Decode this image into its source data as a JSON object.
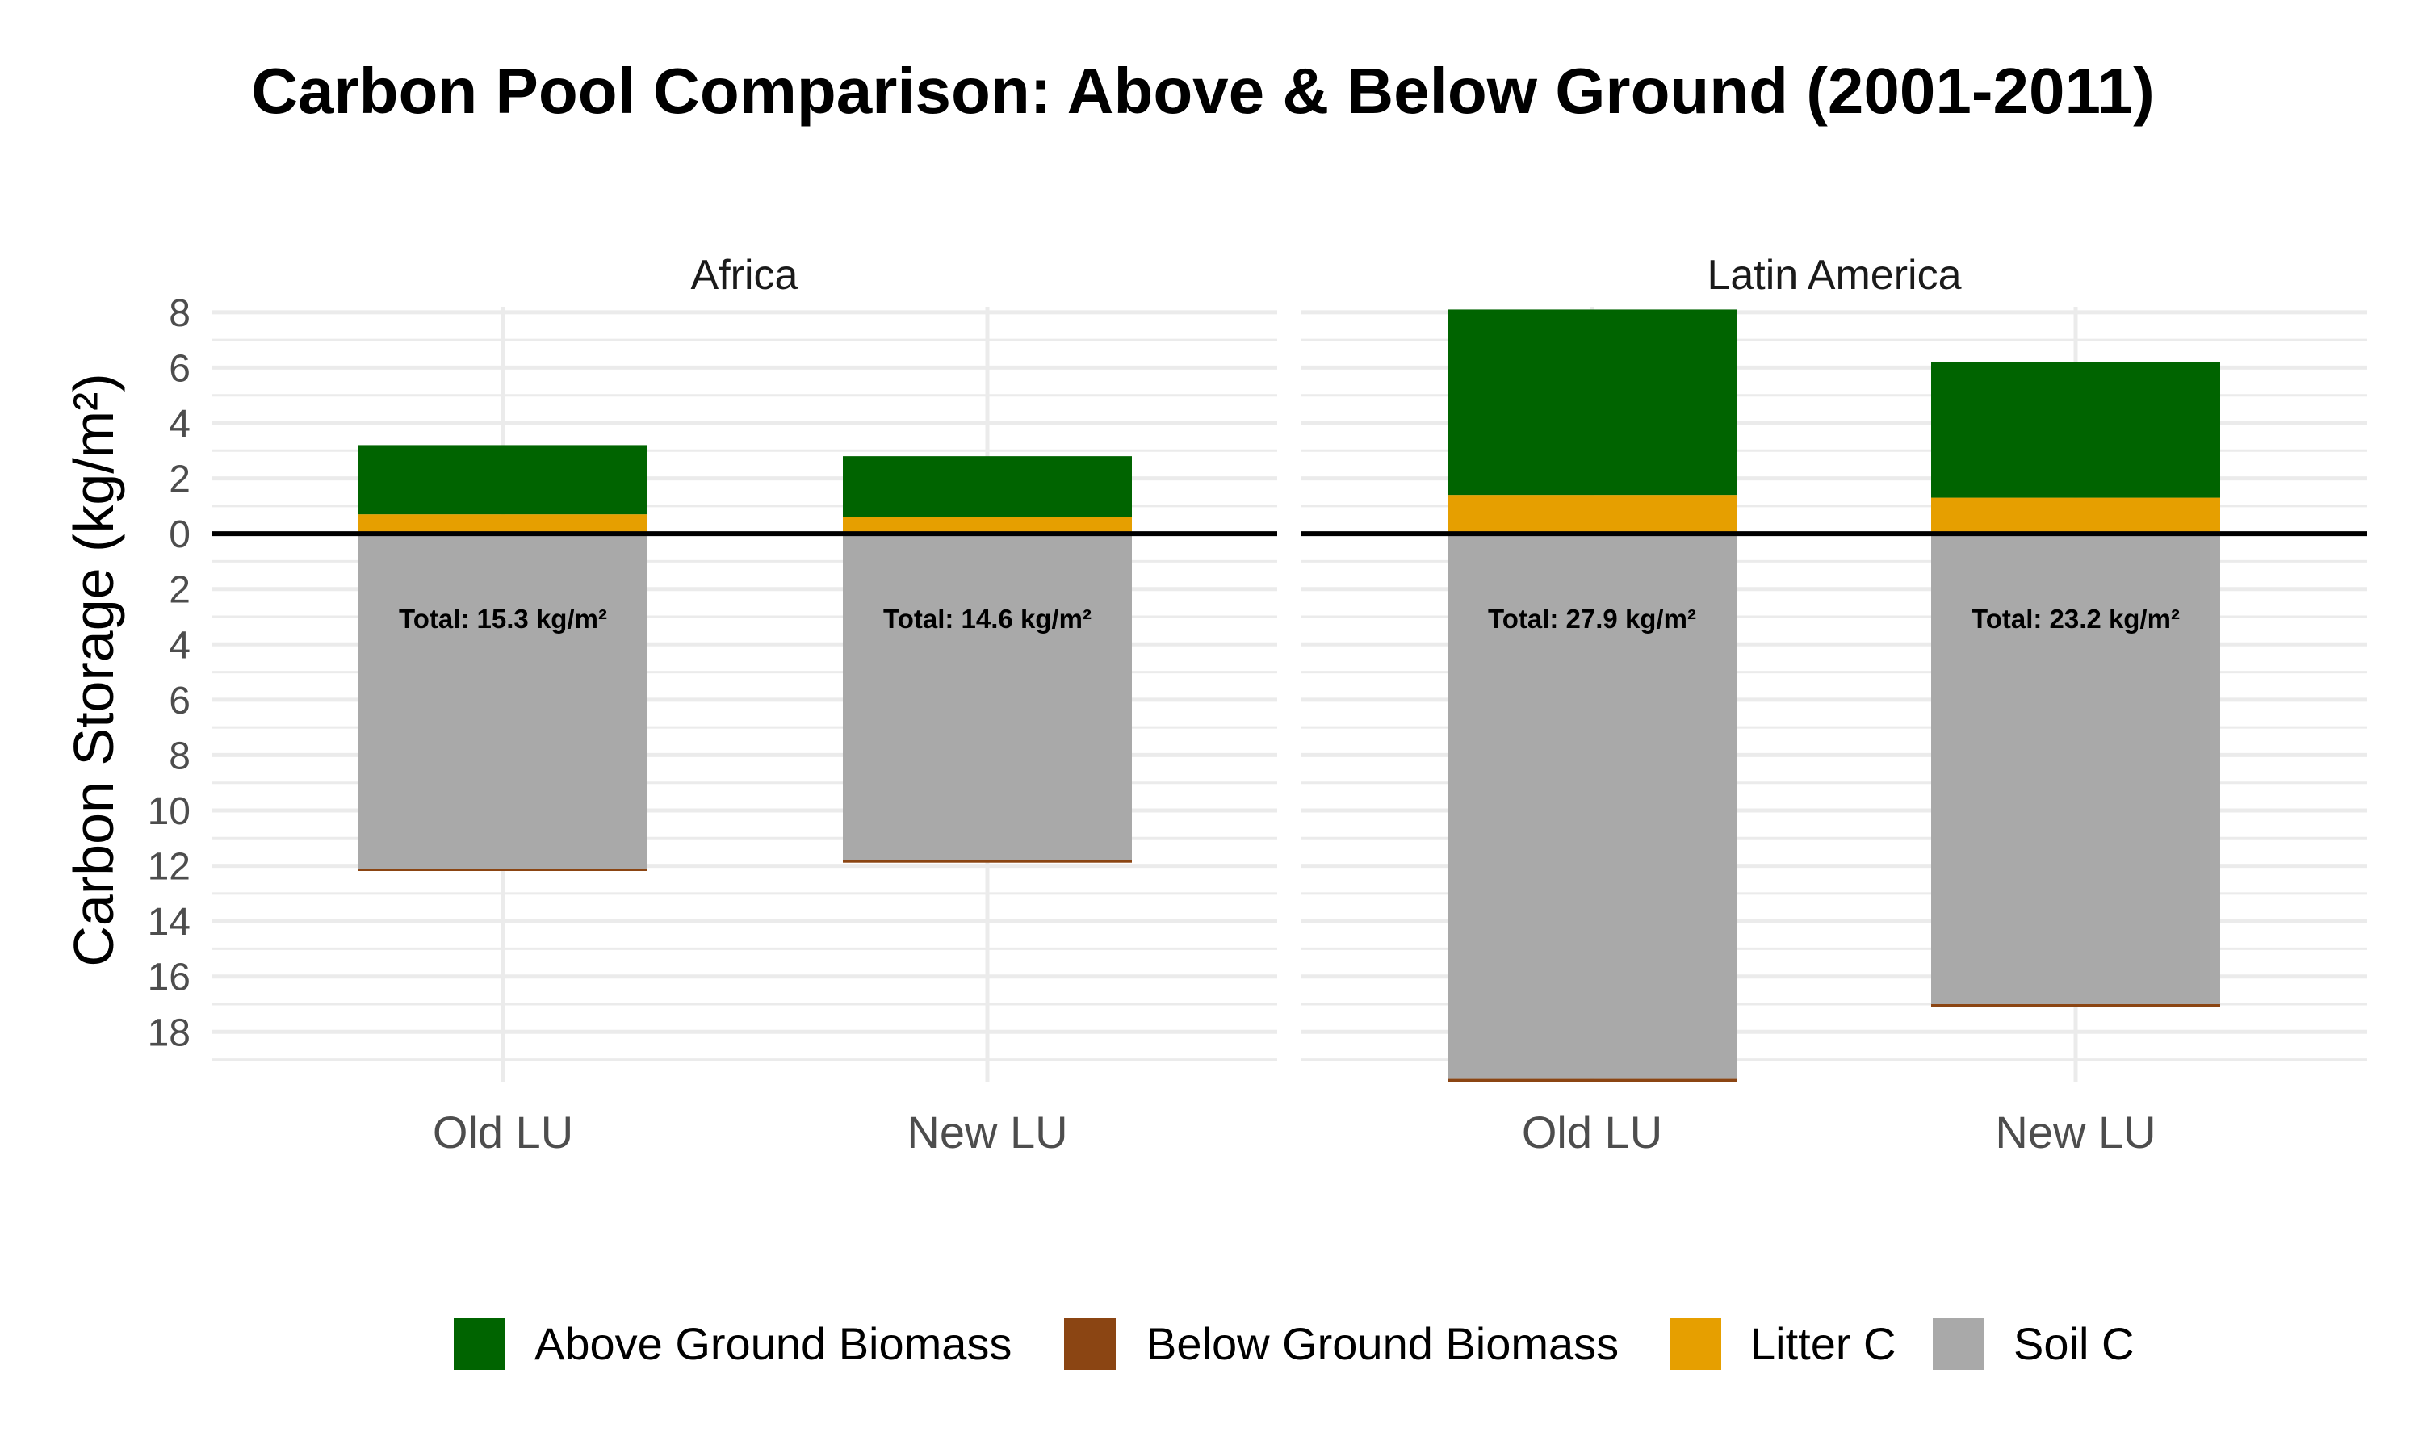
{
  "chart_data": {
    "type": "bar",
    "title": "Carbon Pool Comparison: Above & Below Ground (2001-2011)",
    "ylabel": "Carbon Storage (kg/m²)",
    "xlabel": "",
    "ylim": [
      -19.8,
      8.2
    ],
    "y_ticks": [
      8,
      6,
      4,
      2,
      0,
      -2,
      -4,
      -6,
      -8,
      -10,
      -12,
      -14,
      -16,
      -18
    ],
    "y_tick_labels": [
      "8",
      "6",
      "4",
      "2",
      "0",
      "2",
      "4",
      "6",
      "8",
      "10",
      "12",
      "14",
      "16",
      "18"
    ],
    "categories": [
      "Old LU",
      "New LU"
    ],
    "grid": true,
    "legend_position": "bottom",
    "legend": [
      {
        "name": "Above Ground Biomass",
        "color": "#006400"
      },
      {
        "name": "Below Ground Biomass",
        "color": "#8B4513"
      },
      {
        "name": "Litter C",
        "color": "#E69F00"
      },
      {
        "name": "Soil C",
        "color": "#A9A9A9"
      }
    ],
    "panels": [
      {
        "name": "Africa",
        "bars": [
          {
            "category": "Old LU",
            "above_ground_biomass": 2.5,
            "litter_c": 0.7,
            "soil_c": 12.1,
            "below_ground_biomass": 0.05,
            "total_label": "Total: 15.3 kg/m²"
          },
          {
            "category": "New LU",
            "above_ground_biomass": 2.2,
            "litter_c": 0.6,
            "soil_c": 11.8,
            "below_ground_biomass": 0.05,
            "total_label": "Total: 14.6 kg/m²"
          }
        ]
      },
      {
        "name": "Latin America",
        "bars": [
          {
            "category": "Old LU",
            "above_ground_biomass": 6.7,
            "litter_c": 1.4,
            "soil_c": 19.7,
            "below_ground_biomass": 0.1,
            "total_label": "Total: 27.9 kg/m²"
          },
          {
            "category": "New LU",
            "above_ground_biomass": 4.9,
            "litter_c": 1.3,
            "soil_c": 17.0,
            "below_ground_biomass": 0.1,
            "total_label": "Total: 23.2 kg/m²"
          }
        ]
      }
    ]
  }
}
